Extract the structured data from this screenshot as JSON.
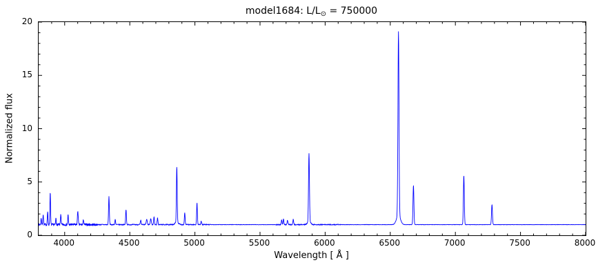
{
  "figure": {
    "title": {
      "prefix": "model1684: L/L",
      "sub": "⊙",
      "suffix": " = 750000"
    },
    "xlabel": "Wavelength [ Å ]",
    "ylabel": "Normalized flux"
  },
  "chart_data": {
    "type": "line",
    "title": "model1684: L/L⊙ = 750000",
    "xlabel": "Wavelength [ Å ]",
    "ylabel": "Normalized flux",
    "xlim": [
      3800,
      8000
    ],
    "ylim": [
      0,
      20
    ],
    "x_ticks": [
      4000,
      4500,
      5000,
      5500,
      6000,
      6500,
      7000,
      7500,
      8000
    ],
    "y_ticks": [
      0,
      5,
      10,
      15,
      20
    ],
    "x_minor_step": 100,
    "y_minor_step": 1,
    "grid": false,
    "legend": "none",
    "line_color": "#0000ff",
    "continuum": 1.0,
    "peaks": [
      {
        "wavelength": 3820,
        "peak_flux": 1.6,
        "sigma": 2.5
      },
      {
        "wavelength": 3835,
        "peak_flux": 2.0,
        "sigma": 2.5
      },
      {
        "wavelength": 3869,
        "peak_flux": 2.2,
        "sigma": 2.5
      },
      {
        "wavelength": 3889,
        "peak_flux": 4.1,
        "sigma": 2.5
      },
      {
        "wavelength": 3933,
        "peak_flux": 1.6,
        "sigma": 2.5
      },
      {
        "wavelength": 3970,
        "peak_flux": 2.0,
        "sigma": 2.5
      },
      {
        "wavelength": 4026,
        "peak_flux": 1.9,
        "sigma": 2.5
      },
      {
        "wavelength": 4101,
        "peak_flux": 2.3,
        "sigma": 3
      },
      {
        "wavelength": 4144,
        "peak_flux": 1.5,
        "sigma": 2.5
      },
      {
        "wavelength": 4340,
        "peak_flux": 3.6,
        "sigma": 3
      },
      {
        "wavelength": 4388,
        "peak_flux": 1.5,
        "sigma": 2.5
      },
      {
        "wavelength": 4471,
        "peak_flux": 2.4,
        "sigma": 3
      },
      {
        "wavelength": 4584,
        "peak_flux": 1.4,
        "sigma": 3
      },
      {
        "wavelength": 4630,
        "peak_flux": 1.5,
        "sigma": 4
      },
      {
        "wavelength": 4661,
        "peak_flux": 1.55,
        "sigma": 4
      },
      {
        "wavelength": 4686,
        "peak_flux": 1.7,
        "sigma": 3
      },
      {
        "wavelength": 4713,
        "peak_flux": 1.6,
        "sigma": 3
      },
      {
        "wavelength": 4861,
        "peak_flux": 6.2,
        "sigma": 3
      },
      {
        "wavelength": 4861,
        "peak_flux": 1.25,
        "sigma": 12
      },
      {
        "wavelength": 4922,
        "peak_flux": 2.1,
        "sigma": 3
      },
      {
        "wavelength": 5016,
        "peak_flux": 3.0,
        "sigma": 3
      },
      {
        "wavelength": 5048,
        "peak_flux": 1.35,
        "sigma": 3
      },
      {
        "wavelength": 5666,
        "peak_flux": 1.45,
        "sigma": 3
      },
      {
        "wavelength": 5680,
        "peak_flux": 1.5,
        "sigma": 3
      },
      {
        "wavelength": 5711,
        "peak_flux": 1.4,
        "sigma": 3
      },
      {
        "wavelength": 5755,
        "peak_flux": 1.5,
        "sigma": 3
      },
      {
        "wavelength": 5876,
        "peak_flux": 7.4,
        "sigma": 3.5
      },
      {
        "wavelength": 5876,
        "peak_flux": 1.3,
        "sigma": 12
      },
      {
        "wavelength": 6563,
        "peak_flux": 18.2,
        "sigma": 4
      },
      {
        "wavelength": 6563,
        "peak_flux": 1.9,
        "sigma": 15
      },
      {
        "wavelength": 6678,
        "peak_flux": 4.7,
        "sigma": 3.5
      },
      {
        "wavelength": 7065,
        "peak_flux": 5.6,
        "sigma": 3.5
      },
      {
        "wavelength": 7281,
        "peak_flux": 2.9,
        "sigma": 3.5
      }
    ],
    "noise_regions": [
      {
        "from": 3800,
        "to": 4250,
        "amp": 0.11
      },
      {
        "from": 4250,
        "to": 5120,
        "amp": 0.05
      },
      {
        "from": 5120,
        "to": 5620,
        "amp": 0.02
      },
      {
        "from": 5620,
        "to": 6120,
        "amp": 0.05
      },
      {
        "from": 6120,
        "to": 8000,
        "amp": 0.018
      }
    ]
  }
}
